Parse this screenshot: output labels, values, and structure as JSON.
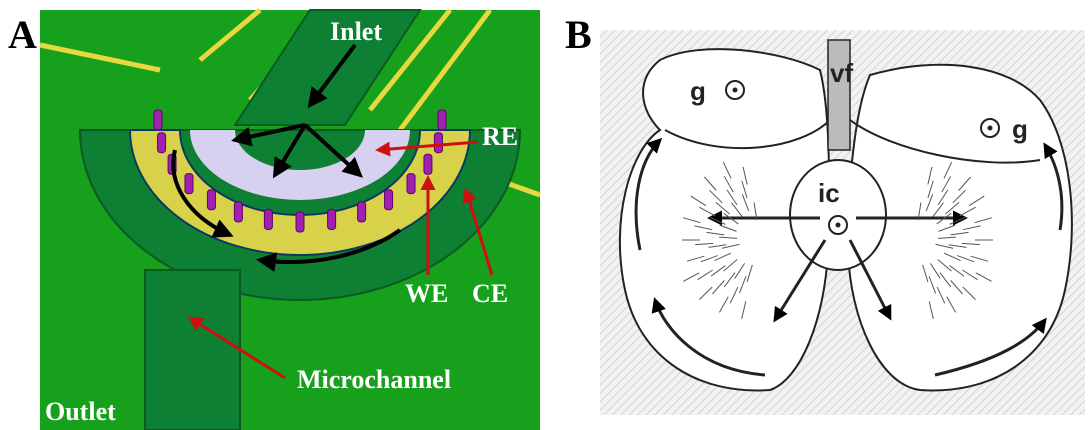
{
  "panels": [
    {
      "label": "A",
      "annotations": [
        "Inlet",
        "RE",
        "WE",
        "CE",
        "Microchannel",
        "Outlet"
      ]
    },
    {
      "label": "B",
      "annotations": [
        "g",
        "g",
        "vf",
        "ic"
      ]
    }
  ]
}
